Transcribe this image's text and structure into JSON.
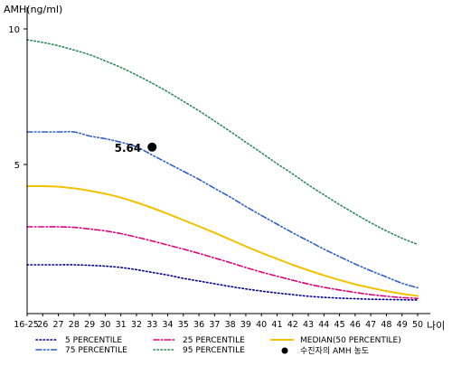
{
  "chart_data": {
    "type": "line",
    "ylabel": "AMH(ng/ml)",
    "xlabel": "나이",
    "x_tick_labels": [
      "16-25",
      "26",
      "27",
      "28",
      "29",
      "30",
      "31",
      "32",
      "33",
      "34",
      "35",
      "36",
      "37",
      "38",
      "39",
      "40",
      "41",
      "42",
      "43",
      "44",
      "45",
      "46",
      "47",
      "48",
      "49",
      "50"
    ],
    "yticks": [
      5,
      10
    ],
    "ylim": [
      -0.5,
      10.6
    ],
    "grid": false,
    "legend_position": "bottom",
    "series": [
      {
        "name": "5 PERCENTILE",
        "color": "#00008b",
        "style": "dotted",
        "values": [
          1.3,
          1.3,
          1.3,
          1.3,
          1.28,
          1.25,
          1.2,
          1.12,
          1.02,
          0.92,
          0.8,
          0.7,
          0.6,
          0.5,
          0.41,
          0.33,
          0.26,
          0.2,
          0.14,
          0.1,
          0.07,
          0.05,
          0.03,
          0.02,
          0.01,
          0.0
        ]
      },
      {
        "name": "25 PERCENTILE",
        "color": "#e0007a",
        "style": "dashdot",
        "values": [
          2.7,
          2.7,
          2.7,
          2.68,
          2.62,
          2.55,
          2.45,
          2.32,
          2.18,
          2.03,
          1.88,
          1.72,
          1.55,
          1.38,
          1.2,
          1.03,
          0.88,
          0.73,
          0.59,
          0.47,
          0.37,
          0.28,
          0.2,
          0.14,
          0.09,
          0.06
        ]
      },
      {
        "name": "MEDIAN(50 PERCENTILE)",
        "color": "#f2c200",
        "style": "solid",
        "values": [
          4.2,
          4.2,
          4.18,
          4.12,
          4.03,
          3.92,
          3.78,
          3.6,
          3.4,
          3.18,
          2.95,
          2.72,
          2.48,
          2.23,
          1.98,
          1.74,
          1.52,
          1.3,
          1.1,
          0.91,
          0.74,
          0.58,
          0.45,
          0.33,
          0.23,
          0.15
        ]
      },
      {
        "name": "75 PERCENTILE",
        "color": "#2f5fc8",
        "style": "dashdotdot",
        "values": [
          6.2,
          6.2,
          6.2,
          6.2,
          6.05,
          5.95,
          5.82,
          5.65,
          5.35,
          5.05,
          4.75,
          4.45,
          4.12,
          3.8,
          3.45,
          3.12,
          2.8,
          2.48,
          2.18,
          1.88,
          1.6,
          1.33,
          1.08,
          0.85,
          0.62,
          0.45
        ]
      },
      {
        "name": "95 PERCENTILE",
        "color": "#2e8b57",
        "style": "dotted",
        "values": [
          9.6,
          9.5,
          9.38,
          9.22,
          9.05,
          8.82,
          8.58,
          8.3,
          8.0,
          7.68,
          7.33,
          6.98,
          6.6,
          6.22,
          5.82,
          5.43,
          5.03,
          4.65,
          4.25,
          3.88,
          3.52,
          3.18,
          2.85,
          2.55,
          2.28,
          2.05
        ]
      }
    ],
    "marker": {
      "name": "수진자의 AMH 농도",
      "x_label": "33",
      "y": 5.64,
      "label": "5.64",
      "color": "#000000"
    }
  }
}
